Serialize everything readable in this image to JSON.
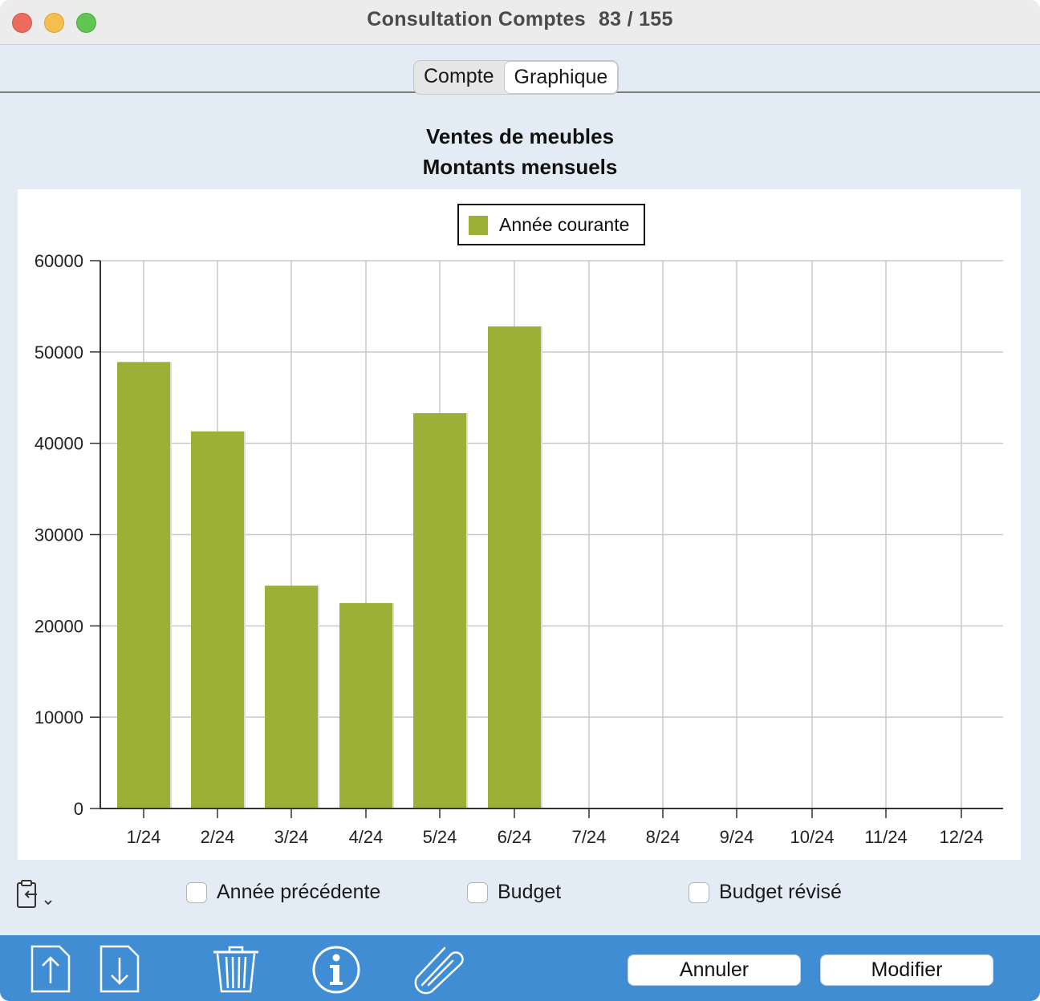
{
  "window": {
    "title": "Consultation Comptes",
    "counter": "83 / 155"
  },
  "tabs": [
    {
      "label": "Compte",
      "active": false
    },
    {
      "label": "Graphique",
      "active": true
    }
  ],
  "chart_data": {
    "type": "bar",
    "title": "Ventes de meubles",
    "subtitle": "Montants mensuels",
    "categories": [
      "1/24",
      "2/24",
      "3/24",
      "4/24",
      "5/24",
      "6/24",
      "7/24",
      "8/24",
      "9/24",
      "10/24",
      "11/24",
      "12/24"
    ],
    "series": [
      {
        "name": "Année courante",
        "color": "#9caf37",
        "values": [
          48900,
          41300,
          24400,
          22500,
          43300,
          52800,
          null,
          null,
          null,
          null,
          null,
          null
        ]
      }
    ],
    "ylim": [
      0,
      60000
    ],
    "yticks": [
      "0",
      "10000",
      "20000",
      "30000",
      "40000",
      "50000",
      "60000"
    ],
    "xlabel": "",
    "ylabel": "",
    "grid": true,
    "legend_position": "top-center"
  },
  "options": {
    "previous_year": {
      "label": "Année précédente",
      "checked": false
    },
    "budget": {
      "label": "Budget",
      "checked": false
    },
    "revised_budget": {
      "label": "Budget révisé",
      "checked": false
    }
  },
  "toolbar": {
    "icons": [
      "export-up-icon",
      "import-down-icon",
      "trash-icon",
      "info-icon",
      "paperclip-icon"
    ],
    "cancel_label": "Annuler",
    "modify_label": "Modifier"
  }
}
